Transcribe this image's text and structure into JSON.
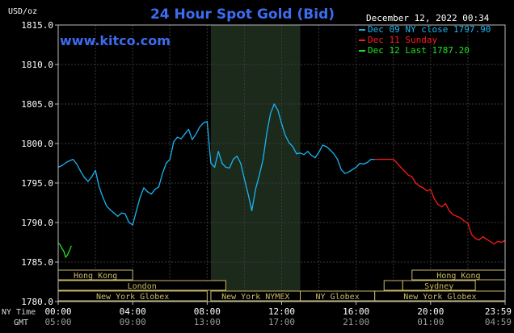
{
  "title": "24 Hour Spot Gold (Bid)",
  "unit_label": "USD/oz",
  "watermark": "www.kitco.com",
  "timestamp": "December 12, 2022 00:34",
  "row_labels": {
    "ny": "NY Time",
    "gmt": "GMT"
  },
  "legend": [
    {
      "text": "Dec 09 NY close 1797.90",
      "color": "#19b4f0"
    },
    {
      "text": "Dec 11 Sunday",
      "color": "#ff1a1a"
    },
    {
      "text": "Dec 12 Last 1787.20",
      "color": "#20e020"
    }
  ],
  "chart_data": {
    "type": "line",
    "title": "24 Hour Spot Gold (Bid)",
    "ylabel": "USD/oz",
    "ylim": [
      1780,
      1815
    ],
    "y_ticks": [
      "1780.0",
      "1785.0",
      "1790.0",
      "1795.0",
      "1800.0",
      "1805.0",
      "1810.0",
      "1815.0"
    ],
    "x_ticks_ny": [
      "00:00",
      "04:00",
      "08:00",
      "12:00",
      "16:00",
      "20:00",
      "23:59"
    ],
    "x_ticks_gmt": [
      "05:00",
      "09:00",
      "13:00",
      "17:00",
      "21:00",
      "01:00",
      "04:59"
    ],
    "series": [
      {
        "name": "Dec 09 NY close 1797.90",
        "color": "#19b4f0",
        "x": [
          0,
          0.2,
          0.5,
          0.8,
          1.0,
          1.2,
          1.4,
          1.6,
          1.8,
          2.0,
          2.2,
          2.4,
          2.6,
          2.8,
          3.0,
          3.2,
          3.4,
          3.6,
          3.8,
          4.0,
          4.2,
          4.4,
          4.6,
          4.8,
          5.0,
          5.2,
          5.4,
          5.6,
          5.8,
          6.0,
          6.2,
          6.4,
          6.6,
          6.8,
          7.0,
          7.2,
          7.4,
          7.6,
          7.8,
          8.0,
          8.2,
          8.4,
          8.6,
          8.8,
          9.0,
          9.2,
          9.4,
          9.6,
          9.8,
          10.0,
          10.2,
          10.4,
          10.6,
          10.8,
          11.0,
          11.2,
          11.4,
          11.6,
          11.8,
          12.0,
          12.2,
          12.4,
          12.6,
          12.8,
          13.0,
          13.2,
          13.4,
          13.6,
          13.8,
          14.0,
          14.2,
          14.4,
          14.6,
          14.8,
          15.0,
          15.2,
          15.4,
          15.6,
          15.8,
          16.0,
          16.2,
          16.4,
          16.6,
          16.8,
          17.0
        ],
        "y": [
          1797.0,
          1797.2,
          1797.7,
          1798.0,
          1797.4,
          1796.5,
          1795.7,
          1795.2,
          1795.8,
          1796.6,
          1794.5,
          1793.2,
          1792.1,
          1791.6,
          1791.2,
          1790.8,
          1791.2,
          1791.1,
          1790.0,
          1789.7,
          1791.5,
          1793.2,
          1794.4,
          1793.9,
          1793.6,
          1794.2,
          1794.5,
          1796.2,
          1797.5,
          1798.0,
          1800.2,
          1800.8,
          1800.6,
          1801.2,
          1801.8,
          1800.5,
          1801.2,
          1802.1,
          1802.6,
          1802.8,
          1797.5,
          1797.0,
          1799.0,
          1797.5,
          1797.0,
          1796.9,
          1798.0,
          1798.4,
          1797.5,
          1795.5,
          1793.6,
          1791.5,
          1794.2,
          1796.0,
          1798.0,
          1801.3,
          1803.8,
          1805.0,
          1804.2,
          1802.5,
          1801.0,
          1800.1,
          1799.6,
          1798.7,
          1798.8,
          1798.6,
          1799.0,
          1798.5,
          1798.2,
          1798.9,
          1799.8,
          1799.6,
          1799.2,
          1798.7,
          1798.0,
          1796.7,
          1796.2,
          1796.4,
          1796.7,
          1797.0,
          1797.5,
          1797.4,
          1797.6,
          1798.0,
          1798.0
        ]
      },
      {
        "name": "Dec 11 Sunday",
        "color": "#ff1a1a",
        "x": [
          17.0,
          17.5,
          18.0,
          18.4,
          18.8,
          19.0,
          19.2,
          19.4,
          19.6,
          19.8,
          20.0,
          20.2,
          20.4,
          20.6,
          20.8,
          21.0,
          21.2,
          21.4,
          21.6,
          21.8,
          22.0,
          22.2,
          22.4,
          22.6,
          22.8,
          23.0,
          23.2,
          23.4,
          23.6,
          23.8,
          23.98
        ],
        "y": [
          1798.0,
          1798.0,
          1798.0,
          1797.0,
          1796.0,
          1795.8,
          1795.0,
          1794.6,
          1794.4,
          1794.0,
          1794.2,
          1793.0,
          1792.3,
          1792.0,
          1792.4,
          1791.5,
          1791.0,
          1790.8,
          1790.6,
          1790.2,
          1789.9,
          1788.5,
          1788.0,
          1787.8,
          1788.2,
          1787.9,
          1787.6,
          1787.3,
          1787.6,
          1787.5,
          1787.7
        ]
      },
      {
        "name": "Dec 12 Last 1787.20",
        "color": "#20e020",
        "x": [
          0,
          0.1,
          0.2,
          0.3,
          0.4,
          0.5,
          0.6,
          0.7
        ],
        "y": [
          1787.4,
          1787.2,
          1786.7,
          1786.4,
          1785.6,
          1785.9,
          1786.4,
          1787.0
        ]
      }
    ],
    "sessions": {
      "shaded_range": [
        8.2,
        13.0
      ],
      "bands": [
        {
          "name": "Hong Kong",
          "row": 0,
          "start": 0.0,
          "end": 4.0
        },
        {
          "name": "London",
          "row": 1,
          "start": 0.0,
          "end": 9.0
        },
        {
          "name": "New York Globex",
          "row": 2,
          "start": 0.0,
          "end": 8.0
        },
        {
          "name": "New York NYMEX",
          "row": 2,
          "start": 8.2,
          "end": 13.0
        },
        {
          "name": "NY Globex",
          "row": 2,
          "start": 13.0,
          "end": 17.0
        },
        {
          "name": "Hong Kong",
          "row": 0,
          "start": 19.0,
          "end": 24.0
        },
        {
          "name": "",
          "row": 1,
          "start": 17.5,
          "end": 18.5
        },
        {
          "name": "Sydney",
          "row": 1,
          "start": 18.5,
          "end": 22.4
        },
        {
          "name": "New York Globex",
          "row": 2,
          "start": 17.0,
          "end": 24.0
        }
      ]
    }
  }
}
